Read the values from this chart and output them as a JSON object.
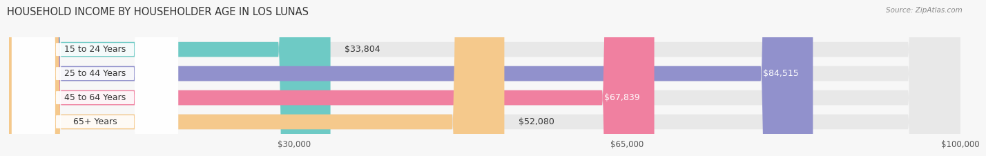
{
  "title": "HOUSEHOLD INCOME BY HOUSEHOLDER AGE IN LOS LUNAS",
  "source": "Source: ZipAtlas.com",
  "categories": [
    "15 to 24 Years",
    "25 to 44 Years",
    "45 to 64 Years",
    "65+ Years"
  ],
  "values": [
    33804,
    84515,
    67839,
    52080
  ],
  "bar_colors": [
    "#6ecac5",
    "#9191cc",
    "#f080a0",
    "#f5c98c"
  ],
  "bar_bg_color": "#e8e8e8",
  "value_labels": [
    "$33,804",
    "$84,515",
    "$67,839",
    "$52,080"
  ],
  "xmin": 0,
  "xmax": 100000,
  "xticks": [
    30000,
    65000,
    100000
  ],
  "xticklabels": [
    "$30,000",
    "$65,000",
    "$100,000"
  ],
  "title_fontsize": 10.5,
  "label_fontsize": 9,
  "tick_fontsize": 8.5,
  "bar_height": 0.62,
  "background_color": "#f7f7f7"
}
